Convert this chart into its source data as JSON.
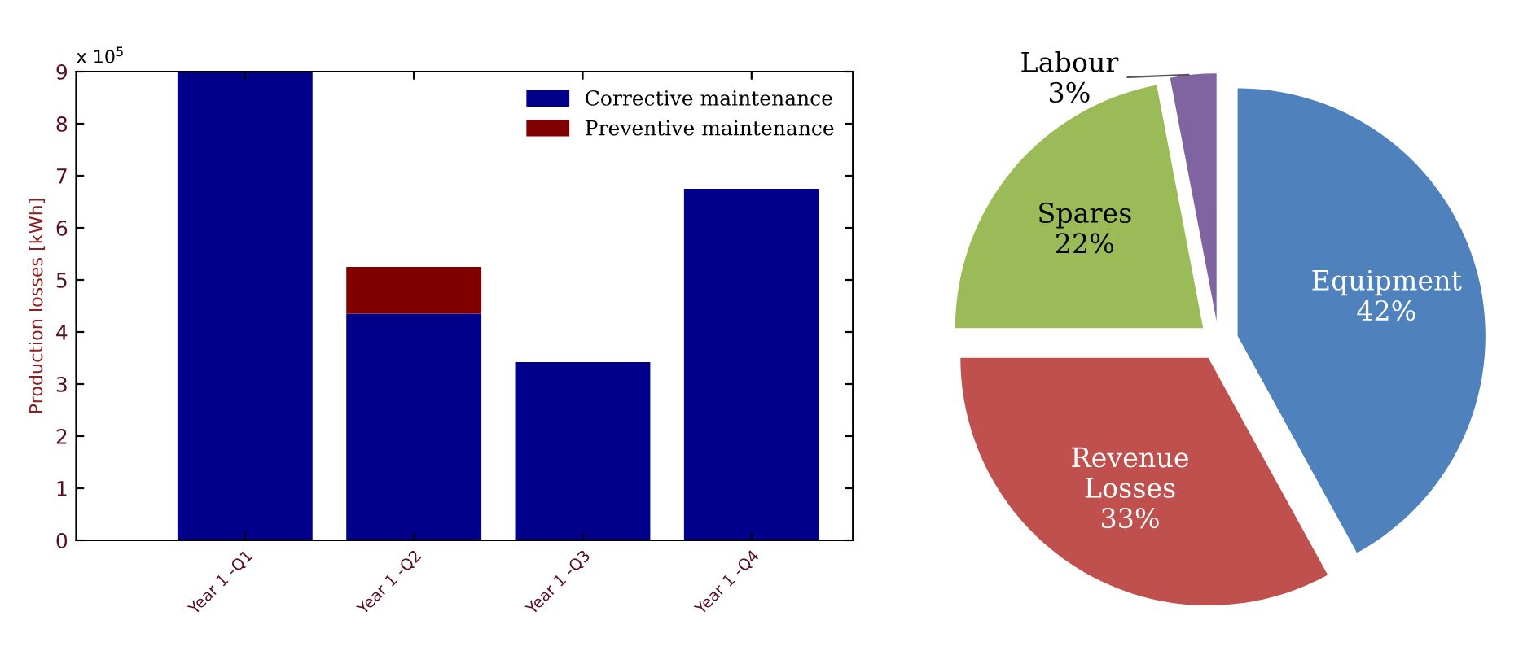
{
  "chart_data": [
    {
      "type": "bar",
      "ylabel": "Production losses [kWh]",
      "categories": [
        "Year 1 -Q1",
        "Year 1 -Q2",
        "Year 1 -Q3",
        "Year 1 -Q4"
      ],
      "stacked": true,
      "series": [
        {
          "name": "Corrective maintenance",
          "color": "#00008b",
          "values": [
            9.0,
            4.35,
            3.42,
            6.75
          ]
        },
        {
          "name": "Preventive maintenance",
          "color": "#800000",
          "values": [
            0,
            0.9,
            0,
            0
          ]
        }
      ],
      "ylim": [
        0,
        9
      ],
      "yticks": [
        0,
        1,
        2,
        3,
        4,
        5,
        6,
        7,
        8,
        9
      ],
      "legend": "top right",
      "grid": false,
      "annotations": [
        "x 10$^{5}$"
      ]
    },
    {
      "type": "pie",
      "categories": [
        "Equipment",
        "Revenue\nLosses",
        "Spares",
        "Labour"
      ],
      "values": [
        42,
        33,
        22,
        3
      ],
      "colors": [
        "#4f81bd",
        "#c0504d",
        "#9bbb59",
        "#8064a2"
      ],
      "value_labels": [
        "42%",
        "33%",
        "22%",
        "3%"
      ]
    }
  ]
}
